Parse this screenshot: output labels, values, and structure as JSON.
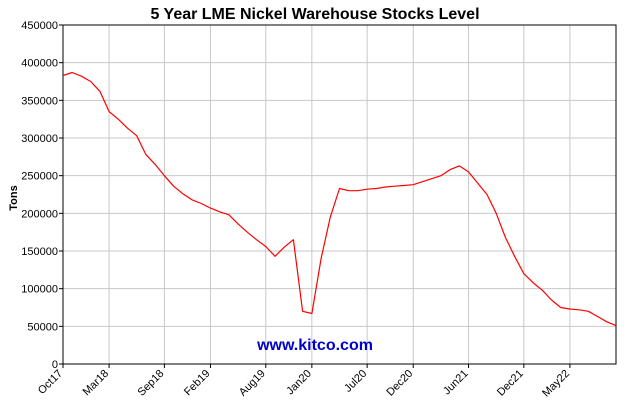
{
  "chart_data": {
    "type": "line",
    "title": "5 Year LME Nickel Warehouse Stocks Level",
    "xlabel": "",
    "ylabel": "Tons",
    "ylim": [
      0,
      450000
    ],
    "yticks": [
      0,
      50000,
      100000,
      150000,
      200000,
      250000,
      300000,
      350000,
      400000,
      450000
    ],
    "ytick_labels": [
      "0",
      "50000",
      "100000",
      "150000",
      "200000",
      "250000",
      "300000",
      "350000",
      "400000",
      "450000"
    ],
    "xlim": [
      "2017-10",
      "2022-10"
    ],
    "xtick_labels": [
      "Oct17",
      "Mar18",
      "Sep18",
      "Feb19",
      "Aug19",
      "Jan20",
      "Jul20",
      "Dec20",
      "Jun21",
      "Dec21",
      "May22"
    ],
    "xtick_dates": [
      "2017-10",
      "2018-03",
      "2018-09",
      "2019-02",
      "2019-08",
      "2020-01",
      "2020-07",
      "2020-12",
      "2021-06",
      "2021-12",
      "2022-05"
    ],
    "grid": true,
    "line_color": "#ff0000",
    "series": [
      {
        "x": [
          "2017-10",
          "2017-11",
          "2017-12",
          "2018-01",
          "2018-02",
          "2018-03",
          "2018-04",
          "2018-05",
          "2018-06",
          "2018-07",
          "2018-08",
          "2018-09",
          "2018-10",
          "2018-11",
          "2018-12",
          "2019-01",
          "2019-02",
          "2019-03",
          "2019-04",
          "2019-05",
          "2019-06",
          "2019-07",
          "2019-08",
          "2019-09",
          "2019-10",
          "2019-11",
          "2019-12",
          "2020-01",
          "2020-02",
          "2020-03",
          "2020-04",
          "2020-05",
          "2020-06",
          "2020-07",
          "2020-08",
          "2020-09",
          "2020-10",
          "2020-11",
          "2020-12",
          "2021-01",
          "2021-02",
          "2021-03",
          "2021-04",
          "2021-05",
          "2021-06",
          "2021-07",
          "2021-08",
          "2021-09",
          "2021-10",
          "2021-11",
          "2021-12",
          "2022-01",
          "2022-02",
          "2022-03",
          "2022-04",
          "2022-05",
          "2022-06",
          "2022-07",
          "2022-08",
          "2022-09",
          "2022-10"
        ],
        "y": [
          383000,
          387000,
          382000,
          375000,
          362000,
          335000,
          325000,
          313000,
          303000,
          278000,
          265000,
          250000,
          236000,
          226000,
          218000,
          213000,
          207000,
          202000,
          198000,
          186000,
          175000,
          165000,
          156000,
          143000,
          155000,
          165000,
          70000,
          67000,
          140000,
          195000,
          233000,
          230000,
          230000,
          232000,
          233000,
          235000,
          236000,
          237000,
          238000,
          242000,
          246000,
          250000,
          258000,
          263000,
          255000,
          240000,
          225000,
          200000,
          168000,
          143000,
          120000,
          108000,
          98000,
          85000,
          75000,
          73000,
          72000,
          70000,
          63000,
          56000,
          51000
        ]
      }
    ],
    "watermark": "www.kitco.com",
    "watermark_color": "#0000cc"
  }
}
